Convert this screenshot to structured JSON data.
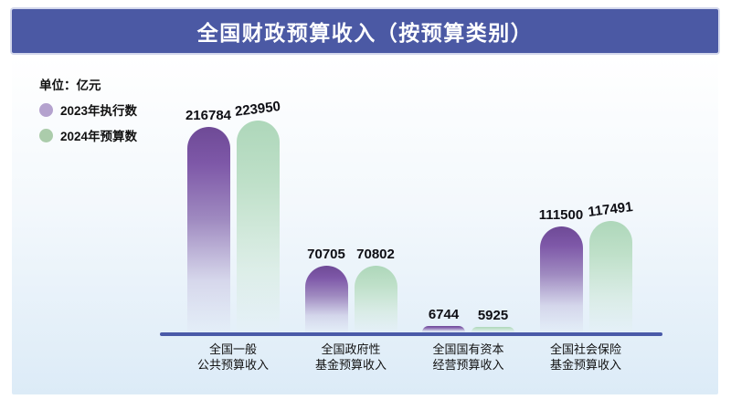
{
  "title": "全国财政预算收入（按预算类别）",
  "unit_label": "单位：亿元",
  "legend": [
    {
      "label": "2023年执行数",
      "color": "#b4a2ce"
    },
    {
      "label": "2024年预算数",
      "color": "#abccab"
    }
  ],
  "chart_data": {
    "type": "bar",
    "title": "全国财政预算收入（按预算类别）",
    "unit": "亿元",
    "categories": [
      {
        "line1": "全国一般",
        "line2": "公共预算收入"
      },
      {
        "line1": "全国政府性",
        "line2": "基金预算收入"
      },
      {
        "line1": "全国国有资本",
        "line2": "经营预算收入"
      },
      {
        "line1": "全国社会保险",
        "line2": "基金预算收入"
      }
    ],
    "series": [
      {
        "name": "2023年执行数",
        "bar_color": "#7a53a0",
        "values": [
          216784,
          70705,
          6744,
          111500
        ]
      },
      {
        "name": "2024年预算数",
        "bar_color": "#b7dcc2",
        "values": [
          223950,
          70802,
          5925,
          117491
        ]
      }
    ],
    "ylim": [
      0,
      230000
    ],
    "grid": false,
    "value_labels": true,
    "legend_position": "top-left"
  },
  "colors": {
    "banner": "#4b59a4",
    "axis_line": "#4a5aa8",
    "background_bottom": "#dcebf7"
  }
}
